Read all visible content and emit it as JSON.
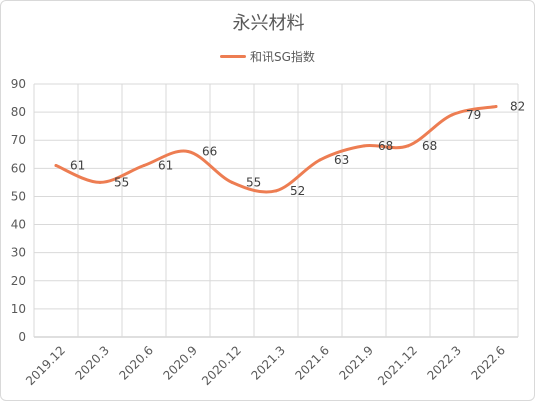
{
  "chart_data": {
    "type": "line",
    "title": "永兴材料",
    "categories": [
      "2019.12",
      "2020.3",
      "2020.6",
      "2020.9",
      "2020.12",
      "2021.3",
      "2021.6",
      "2021.9",
      "2021.12",
      "2022.3",
      "2022.6"
    ],
    "series": [
      {
        "name": "和讯SG指数",
        "values": [
          61,
          55,
          61,
          66,
          55,
          52,
          63,
          68,
          68,
          79,
          82
        ],
        "color": "#ED7D52"
      }
    ],
    "ylim": [
      0,
      90
    ],
    "yticks": [
      "0",
      "10",
      "20",
      "30",
      "40",
      "50",
      "60",
      "70",
      "80",
      "90"
    ],
    "grid": true,
    "smooth": true,
    "legend": "top-center"
  }
}
